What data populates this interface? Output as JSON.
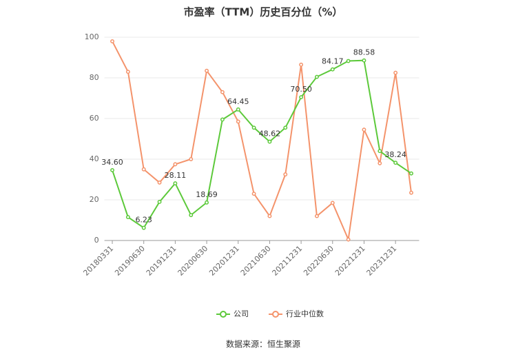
{
  "chart_data": {
    "type": "line",
    "title": "市盈率（TTM）历史百分位（%）",
    "categories": [
      "20180331",
      null,
      "20190630",
      null,
      "20191231",
      null,
      "20200630",
      null,
      "20201231",
      null,
      "20210630",
      null,
      "20211231",
      null,
      "20220630",
      null,
      "20221231",
      null,
      "20231231",
      null
    ],
    "series": [
      {
        "name": "公司",
        "color": "#5cc93a",
        "values": [
          34.6,
          11.5,
          6.23,
          19,
          28.11,
          12.5,
          18.69,
          59.5,
          64.45,
          55.5,
          48.62,
          55.5,
          70.5,
          80.5,
          84.17,
          88.3,
          88.58,
          44,
          38.24,
          33
        ],
        "value_labels": [
          "34.60",
          null,
          "6.23",
          null,
          "28.11",
          null,
          "18.69",
          null,
          "64.45",
          null,
          "48.62",
          null,
          "70.50",
          null,
          "84.17",
          null,
          "88.58",
          null,
          "38.24",
          null
        ]
      },
      {
        "name": "行业中位数",
        "color": "#f4936b",
        "values": [
          98,
          83,
          35,
          28.5,
          37.5,
          40,
          83.5,
          73,
          58.5,
          23,
          12,
          32.5,
          86.5,
          12,
          18.5,
          0.5,
          54.5,
          38,
          82.5,
          23.5
        ]
      }
    ],
    "ylim": [
      0,
      100
    ],
    "yticks": [
      0,
      20,
      40,
      60,
      80,
      100
    ],
    "grid": true,
    "source": "数据来源：恒生聚源"
  }
}
